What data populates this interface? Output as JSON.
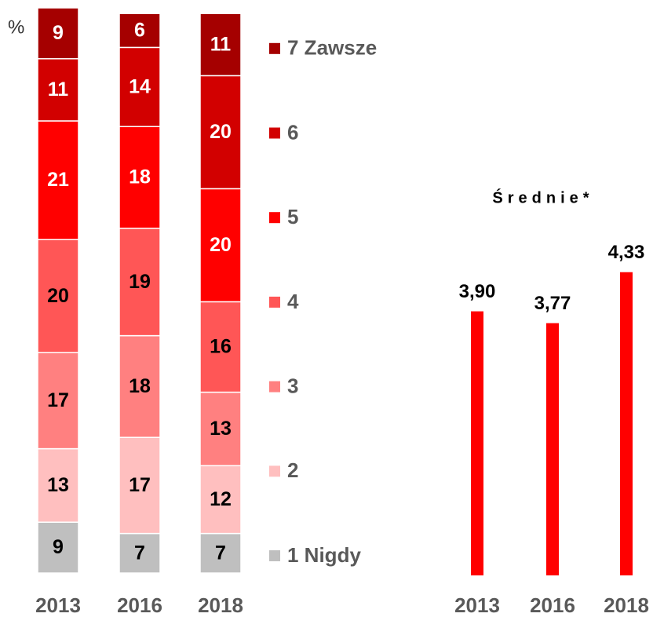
{
  "chart_data": [
    {
      "type": "stacked_bar",
      "y_label": "%",
      "categories": [
        "2013",
        "2016",
        "2018"
      ],
      "ylim": [
        0,
        100
      ],
      "series": [
        {
          "name": "1 Nigdy",
          "color": "#bfbfbf",
          "values": [
            9,
            7,
            7
          ]
        },
        {
          "name": "2",
          "color": "#ffbfbf",
          "values": [
            13,
            17,
            12
          ]
        },
        {
          "name": "3",
          "color": "#ff8080",
          "values": [
            17,
            18,
            13
          ]
        },
        {
          "name": "4",
          "color": "#ff5656",
          "values": [
            20,
            19,
            16
          ]
        },
        {
          "name": "5",
          "color": "#ff0000",
          "values": [
            21,
            18,
            20
          ]
        },
        {
          "name": "6",
          "color": "#d20000",
          "values": [
            11,
            14,
            20
          ]
        },
        {
          "name": "7 Zawsze",
          "color": "#a50000",
          "values": [
            9,
            6,
            11
          ]
        }
      ]
    },
    {
      "type": "bar",
      "title": "Średnie*",
      "categories": [
        "2013",
        "2016",
        "2018"
      ],
      "values": [
        3.9,
        3.77,
        4.33
      ],
      "value_labels": [
        "3,90",
        "3,77",
        "4,33"
      ],
      "color": "#ff0000",
      "ylim": [
        1,
        7
      ]
    }
  ]
}
